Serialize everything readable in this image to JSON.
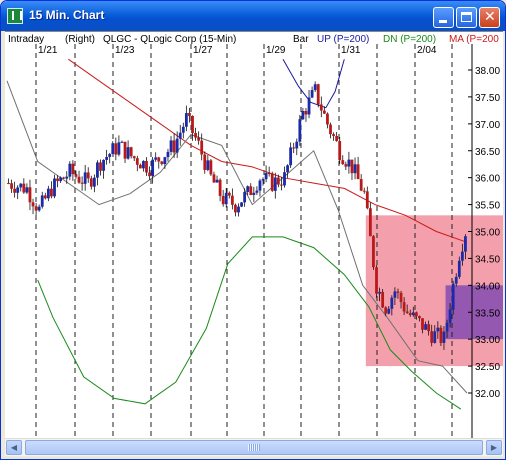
{
  "window": {
    "title": "15 Min. Chart"
  },
  "header": {
    "mode": "Intraday",
    "axis_side": "(Right)",
    "instrument": "QLGC - QLogic Corp (15-Min)",
    "bar_type": "Bar",
    "up_label": "UP (P=200)",
    "dn_label": "DN (P=200)",
    "ma_label": "MA (P=200"
  },
  "colors": {
    "up_line": "#1a1aa0",
    "dn_line": "#1a8a1a",
    "ma_line": "#cc1a1a",
    "price_line": "#707070",
    "bar_up": "#1a2aa8",
    "bar_down": "#b81a1a",
    "zone_fill": "#f08090",
    "zone_overlap": "#8a50b0"
  },
  "chart_data": {
    "type": "candlestick",
    "title": "QLGC - QLogic Corp (15-Min)",
    "date_labels": [
      "1/21",
      "1/23",
      "1/27",
      "1/29",
      "1/31",
      "2/04"
    ],
    "y_ticks": [
      "38.00",
      "37.50",
      "37.00",
      "36.50",
      "36.00",
      "35.50",
      "35.00",
      "34.50",
      "34.00",
      "33.50",
      "33.00",
      "32.50",
      "32.00"
    ],
    "ylim": [
      31.6,
      38.3
    ],
    "n_bars": 150,
    "price_path": [
      [
        0,
        35.9
      ],
      [
        6,
        35.8
      ],
      [
        10,
        35.4
      ],
      [
        14,
        35.8
      ],
      [
        20,
        36.1
      ],
      [
        26,
        35.9
      ],
      [
        30,
        36.3
      ],
      [
        36,
        36.6
      ],
      [
        40,
        36.4
      ],
      [
        46,
        36.2
      ],
      [
        50,
        36.4
      ],
      [
        54,
        36.6
      ],
      [
        58,
        37.1
      ],
      [
        62,
        36.6
      ],
      [
        66,
        36.0
      ],
      [
        70,
        35.6
      ],
      [
        74,
        35.5
      ],
      [
        78,
        35.7
      ],
      [
        82,
        36.0
      ],
      [
        86,
        35.9
      ],
      [
        90,
        36.0
      ],
      [
        96,
        37.2
      ],
      [
        100,
        37.6
      ],
      [
        104,
        37.0
      ],
      [
        108,
        36.5
      ],
      [
        112,
        36.2
      ],
      [
        116,
        35.7
      ],
      [
        120,
        34.0
      ],
      [
        123,
        33.6
      ],
      [
        126,
        33.9
      ],
      [
        130,
        33.5
      ],
      [
        134,
        33.3
      ],
      [
        138,
        33.1
      ],
      [
        142,
        33.0
      ],
      [
        145,
        34.0
      ],
      [
        147,
        34.6
      ],
      [
        149,
        35.0
      ]
    ],
    "series": [
      {
        "name": "UP (P=200)",
        "points": [
          [
            90,
            38.2
          ],
          [
            95,
            37.7
          ],
          [
            99,
            37.4
          ],
          [
            104,
            37.3
          ],
          [
            107,
            37.6
          ],
          [
            110,
            38.2
          ]
        ]
      },
      {
        "name": "DN (P=200)",
        "points": [
          [
            10,
            34.1
          ],
          [
            15,
            33.4
          ],
          [
            25,
            32.3
          ],
          [
            35,
            31.9
          ],
          [
            45,
            31.8
          ],
          [
            55,
            32.2
          ],
          [
            65,
            33.2
          ],
          [
            72,
            34.4
          ],
          [
            80,
            34.9
          ],
          [
            90,
            34.9
          ],
          [
            100,
            34.7
          ],
          [
            110,
            34.2
          ],
          [
            118,
            33.6
          ],
          [
            125,
            32.8
          ],
          [
            132,
            32.4
          ],
          [
            140,
            32.0
          ],
          [
            148,
            31.7
          ]
        ]
      },
      {
        "name": "MA (P=200",
        "points": [
          [
            20,
            38.2
          ],
          [
            30,
            37.8
          ],
          [
            40,
            37.4
          ],
          [
            50,
            37.0
          ],
          [
            60,
            36.6
          ],
          [
            70,
            36.3
          ],
          [
            80,
            36.2
          ],
          [
            90,
            36.0
          ],
          [
            100,
            35.9
          ],
          [
            110,
            35.8
          ],
          [
            120,
            35.5
          ],
          [
            130,
            35.3
          ],
          [
            140,
            35.0
          ],
          [
            150,
            34.8
          ]
        ]
      },
      {
        "name": "price-band-upper",
        "points": [
          [
            0,
            37.8
          ],
          [
            10,
            36.3
          ],
          [
            20,
            35.9
          ],
          [
            30,
            35.5
          ],
          [
            40,
            35.7
          ],
          [
            50,
            36.1
          ],
          [
            60,
            36.8
          ],
          [
            70,
            36.6
          ],
          [
            80,
            35.5
          ],
          [
            90,
            36.0
          ],
          [
            100,
            36.5
          ],
          [
            108,
            35.4
          ],
          [
            116,
            34.0
          ],
          [
            124,
            33.4
          ],
          [
            134,
            32.6
          ],
          [
            142,
            32.5
          ],
          [
            150,
            32.0
          ]
        ]
      }
    ],
    "zones": [
      {
        "from_bar": 117,
        "to_bar": 150,
        "low": 32.5,
        "high": 35.3
      },
      {
        "from_bar": 143,
        "to_bar": 150,
        "low": 33.0,
        "high": 34.0
      }
    ]
  }
}
